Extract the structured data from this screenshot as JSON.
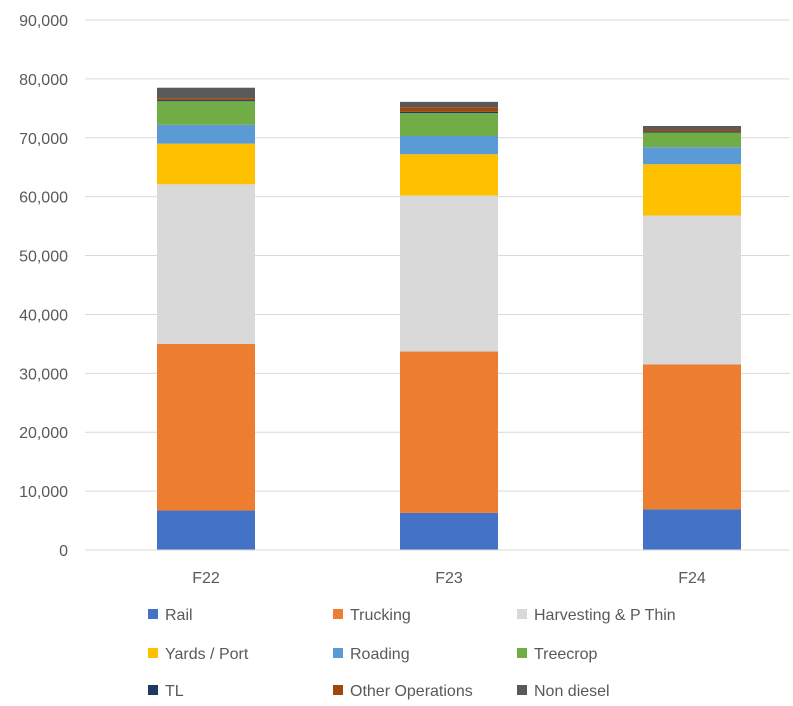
{
  "chart_data": {
    "type": "bar",
    "stacked": true,
    "title": "",
    "xlabel": "",
    "ylabel": "",
    "categories": [
      "F22",
      "F23",
      "F24"
    ],
    "ylim": [
      0,
      90000
    ],
    "yticks": [
      0,
      10000,
      20000,
      30000,
      40000,
      50000,
      60000,
      70000,
      80000,
      90000
    ],
    "ytick_labels": [
      "0",
      "10,000",
      "20,000",
      "30,000",
      "40,000",
      "50,000",
      "60,000",
      "70,000",
      "80,000",
      "90,000"
    ],
    "grid": true,
    "legend_position": "bottom",
    "series": [
      {
        "name": "Rail",
        "color": "#4472C4",
        "values": [
          6700,
          6300,
          6900
        ]
      },
      {
        "name": "Trucking",
        "color": "#ED7D31",
        "values": [
          28300,
          27400,
          24600
        ]
      },
      {
        "name": "Harvesting & P Thin",
        "color": "#D9D9D9",
        "values": [
          27100,
          26500,
          25300
        ]
      },
      {
        "name": "Yards / Port",
        "color": "#FFC000",
        "values": [
          6900,
          7000,
          8700
        ]
      },
      {
        "name": "Roading",
        "color": "#5B9BD5",
        "values": [
          3200,
          3100,
          2900
        ]
      },
      {
        "name": "Treecrop",
        "color": "#70AD47",
        "values": [
          4000,
          3900,
          2500
        ]
      },
      {
        "name": "TL",
        "color": "#1F3864",
        "values": [
          200,
          200,
          200
        ]
      },
      {
        "name": "Other Operations",
        "color": "#9E480E",
        "values": [
          300,
          800,
          300
        ]
      },
      {
        "name": "Non diesel",
        "color": "#595959",
        "values": [
          1800,
          900,
          600
        ]
      }
    ]
  }
}
